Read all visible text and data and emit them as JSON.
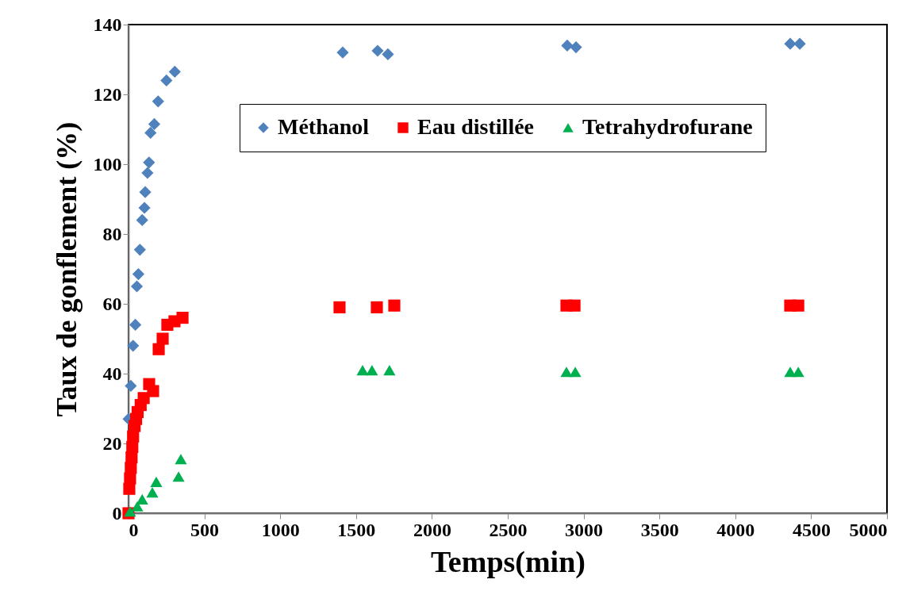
{
  "chart_data": {
    "type": "scatter",
    "xlabel": "Temps(min)",
    "ylabel": "Taux de gonflement (%)",
    "xlim": [
      0,
      5000
    ],
    "xticks": [
      0,
      500,
      1000,
      1500,
      2000,
      2500,
      3000,
      3500,
      4000,
      4500,
      5000
    ],
    "ylim": [
      0,
      140
    ],
    "yticks": [
      0,
      20,
      40,
      60,
      80,
      100,
      120,
      140
    ],
    "grid": false,
    "legend": "top",
    "series": [
      {
        "name": "Méthanol",
        "color": "#4f81bd",
        "marker": "diamond",
        "x": [
          0,
          15,
          30,
          45,
          55,
          65,
          75,
          90,
          105,
          110,
          125,
          135,
          145,
          170,
          195,
          250,
          305,
          1412,
          1642,
          1710,
          2892,
          2950,
          4362,
          4425
        ],
        "values": [
          27,
          36.5,
          48,
          54,
          65,
          68.5,
          75.5,
          84,
          87.5,
          92,
          97.5,
          100.5,
          109,
          111.5,
          118,
          124,
          126.5,
          132,
          132.5,
          131.5,
          134,
          133.5,
          134.5,
          134.5
        ]
      },
      {
        "name": "Eau distillée",
        "color": "#ff0000",
        "marker": "square",
        "x": [
          0,
          5,
          10,
          15,
          20,
          25,
          30,
          40,
          50,
          60,
          80,
          100,
          136,
          162,
          199,
          225,
          256,
          303,
          356,
          1391,
          1637,
          1752,
          2887,
          2940,
          4362,
          4415
        ],
        "values": [
          0,
          7,
          10,
          13,
          16,
          19,
          22,
          25,
          27,
          29,
          31,
          33,
          37,
          35,
          47,
          50,
          54,
          55,
          56,
          59,
          59,
          59.5,
          59.5,
          59.5,
          59.5,
          59.5
        ]
      },
      {
        "name": "Tetrahydrofurane",
        "color": "#00b050",
        "marker": "triangle",
        "x": [
          10,
          58,
          90,
          157,
          183,
          330,
          345,
          1543,
          1605,
          1720,
          2887,
          2945,
          4362,
          4415
        ],
        "values": [
          0.5,
          2,
          4,
          6,
          9,
          10.5,
          15.5,
          41,
          41,
          41,
          40.5,
          40.5,
          40.5,
          40.5
        ]
      }
    ]
  }
}
